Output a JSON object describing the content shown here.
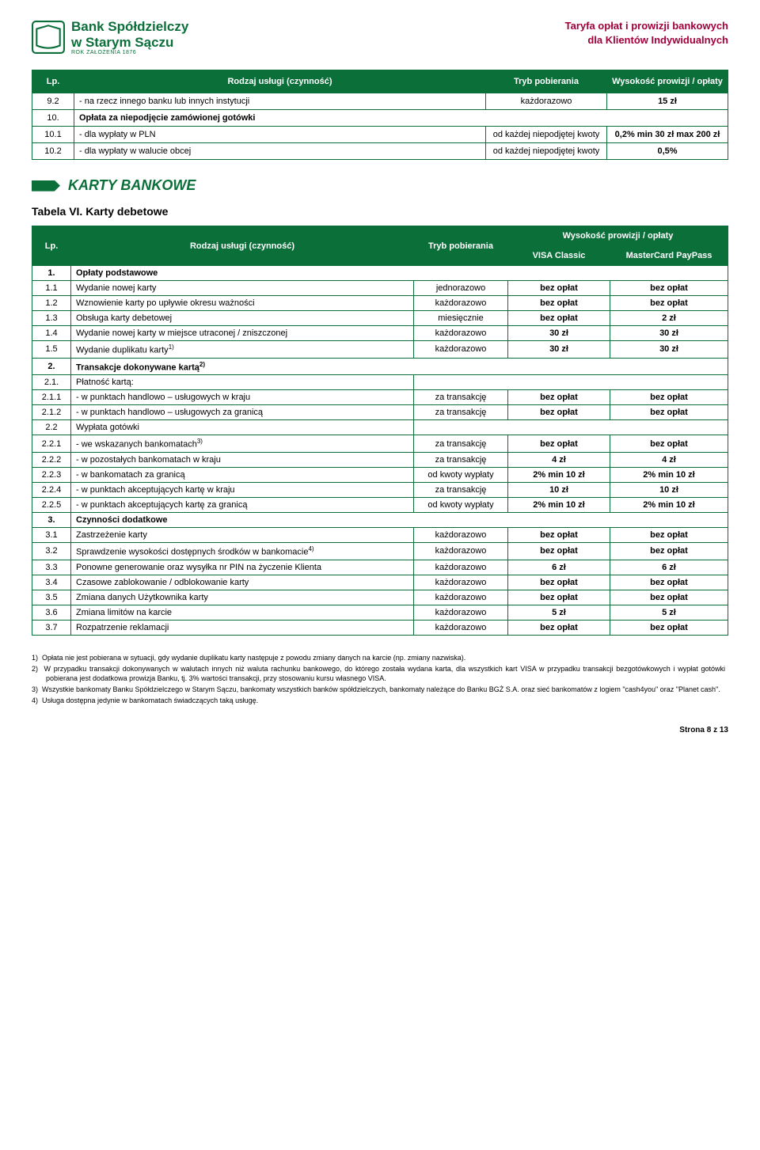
{
  "header": {
    "bank_line1": "Bank Spółdzielczy",
    "bank_line2": "w Starym Sączu",
    "bank_foot": "ROK ZAŁOŻENIA 1876",
    "right_line1": "Taryfa opłat i prowizji bankowych",
    "right_line2": "dla Klientów Indywidualnych"
  },
  "table1": {
    "headers": {
      "lp": "Lp.",
      "rodzaj": "Rodzaj usługi (czynność)",
      "tryb": "Tryb pobierania",
      "wys": "Wysokość prowizji / opłaty"
    },
    "rows": [
      {
        "lp": "9.2",
        "name": "- na rzecz innego banku lub innych instytucji",
        "tryb": "każdorazowo",
        "wys": "15 zł"
      },
      {
        "lp": "10.",
        "name": "Opłata za niepodjęcie zamówionej gotówki",
        "bold": true,
        "span": true
      },
      {
        "lp": "10.1",
        "name": "- dla wypłaty w PLN",
        "tryb": "od każdej niepodjętej kwoty",
        "wys": "0,2% min 30 zł max 200 zł"
      },
      {
        "lp": "10.2",
        "name": "- dla wypłaty w walucie obcej",
        "tryb": "od każdej niepodjętej kwoty",
        "wys": "0,5%"
      }
    ]
  },
  "section": {
    "title": "KARTY BANKOWE"
  },
  "subhead": "Tabela VI.    Karty debetowe",
  "table2": {
    "headers": {
      "lp": "Lp.",
      "rodzaj": "Rodzaj usługi (czynność)",
      "tryb": "Tryb pobierania",
      "wysgrp": "Wysokość prowizji / opłaty",
      "visa": "VISA Classic",
      "mc": "MasterCard PayPass"
    },
    "rows": [
      {
        "lp": "1.",
        "name": "Opłaty podstawowe",
        "group": true
      },
      {
        "lp": "1.1",
        "name": "Wydanie nowej karty",
        "tryb": "jednorazowo",
        "v": "bez opłat",
        "m": "bez opłat"
      },
      {
        "lp": "1.2",
        "name": "Wznowienie karty po upływie okresu ważności",
        "tryb": "każdorazowo",
        "v": "bez opłat",
        "m": "bez opłat"
      },
      {
        "lp": "1.3",
        "name": "Obsługa karty debetowej",
        "tryb": "miesięcznie",
        "v": "bez opłat",
        "m": "2 zł"
      },
      {
        "lp": "1.4",
        "name": "Wydanie nowej karty w miejsce utraconej / zniszczonej",
        "tryb": "każdorazowo",
        "v": "30 zł",
        "m": "30 zł"
      },
      {
        "lp": "1.5",
        "name": "Wydanie duplikatu karty",
        "sup": "1)",
        "tryb": "każdorazowo",
        "v": "30 zł",
        "m": "30 zł"
      },
      {
        "lp": "2.",
        "name": "Transakcje dokonywane kartą",
        "sup": "2)",
        "group": true
      },
      {
        "lp": "2.1.",
        "name": "Płatność kartą:",
        "span3": true
      },
      {
        "lp": "2.1.1",
        "name": "- w punktach handlowo – usługowych w kraju",
        "tryb": "za transakcję",
        "v": "bez opłat",
        "m": "bez opłat"
      },
      {
        "lp": "2.1.2",
        "name": "- w punktach handlowo – usługowych za granicą",
        "tryb": "za transakcję",
        "v": "bez opłat",
        "m": "bez opłat"
      },
      {
        "lp": "2.2",
        "name": "Wypłata gotówki",
        "span3": true
      },
      {
        "lp": "2.2.1",
        "name": "- we wskazanych bankomatach",
        "sup": "3)",
        "tryb": "za transakcję",
        "v": "bez opłat",
        "m": "bez opłat"
      },
      {
        "lp": "2.2.2",
        "name": "- w pozostałych bankomatach w kraju",
        "tryb": "za transakcję",
        "v": "4 zł",
        "m": "4 zł"
      },
      {
        "lp": "2.2.3",
        "name": "- w bankomatach za granicą",
        "tryb": "od kwoty wypłaty",
        "v": "2% min 10 zł",
        "m": "2% min 10 zł"
      },
      {
        "lp": "2.2.4",
        "name": "- w punktach akceptujących kartę w kraju",
        "tryb": "za transakcję",
        "v": "10 zł",
        "m": "10 zł"
      },
      {
        "lp": "2.2.5",
        "name": "- w punktach akceptujących kartę za granicą",
        "tryb": "od kwoty wypłaty",
        "v": "2% min 10 zł",
        "m": "2% min 10 zł"
      },
      {
        "lp": "3.",
        "name": "Czynności dodatkowe",
        "group": true
      },
      {
        "lp": "3.1",
        "name": "Zastrzeżenie karty",
        "tryb": "każdorazowo",
        "v": "bez opłat",
        "m": "bez opłat"
      },
      {
        "lp": "3.2",
        "name": "Sprawdzenie wysokości dostępnych środków w bankomacie",
        "sup": "4)",
        "tryb": "każdorazowo",
        "v": "bez opłat",
        "m": "bez opłat"
      },
      {
        "lp": "3.3",
        "name": "Ponowne generowanie oraz wysyłka nr PIN na życzenie Klienta",
        "tryb": "każdorazowo",
        "v": "6 zł",
        "m": "6 zł"
      },
      {
        "lp": "3.4",
        "name": "Czasowe zablokowanie / odblokowanie karty",
        "tryb": "każdorazowo",
        "v": "bez opłat",
        "m": "bez opłat"
      },
      {
        "lp": "3.5",
        "name": "Zmiana danych Użytkownika karty",
        "tryb": "każdorazowo",
        "v": "bez opłat",
        "m": "bez opłat"
      },
      {
        "lp": "3.6",
        "name": "Zmiana limitów na karcie",
        "tryb": "każdorazowo",
        "v": "5 zł",
        "m": "5 zł"
      },
      {
        "lp": "3.7",
        "name": "Rozpatrzenie reklamacji",
        "tryb": "każdorazowo",
        "v": "bez opłat",
        "m": "bez opłat"
      }
    ]
  },
  "footnotes": [
    "Opłata nie jest pobierana w sytuacji, gdy wydanie duplikatu karty następuje z powodu zmiany danych na karcie (np. zmiany nazwiska).",
    "W przypadku transakcji dokonywanych w walutach innych niż waluta rachunku bankowego, do którego została wydana karta, dla wszystkich kart VISA w przypadku transakcji bezgotówkowych i wypłat gotówki pobierana jest dodatkowa prowizja Banku, tj. 3% wartości transakcji, przy stosowaniu kursu własnego VISA.",
    "Wszystkie bankomaty Banku Spółdzielczego w Starym Sączu, bankomaty wszystkich banków spółdzielczych, bankomaty należące do Banku BGŻ S.A. oraz sieć bankomatów z logiem \"cash4you\" oraz \"Planet cash\".",
    "Usługa dostępna jedynie w bankomatach świadczących taką usługę."
  ],
  "footer": "Strona 8 z 13"
}
